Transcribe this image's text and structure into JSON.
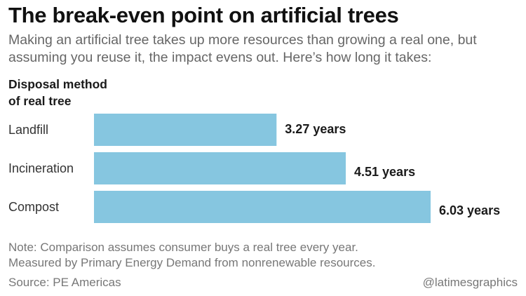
{
  "header": {
    "title": "The break-even point on artificial trees",
    "subtitle": "Making an artificial tree takes up more resources than growing a real one, but assuming you reuse it, the impact evens out. Here’s how long it takes:"
  },
  "category_header": {
    "line1": "Disposal method",
    "line2": "of real tree"
  },
  "chart_data": {
    "type": "bar",
    "orientation": "horizontal",
    "categories": [
      "Landfill",
      "Incineration",
      "Compost"
    ],
    "values": [
      3.27,
      4.51,
      6.03
    ],
    "value_labels": [
      "3.27 years",
      "4.51 years",
      "6.03 years"
    ],
    "unit": "years",
    "bar_color": "#86c6e0",
    "xlim": [
      0,
      6.03
    ],
    "grid": false,
    "legend": "none"
  },
  "footer": {
    "note_line1": "Note: Comparison assumes consumer buys a real tree every year.",
    "note_line2": "Measured by Primary Energy Demand from nonrenewable resources.",
    "source": "Source: PE Americas",
    "credit": "@latimesgraphics"
  }
}
